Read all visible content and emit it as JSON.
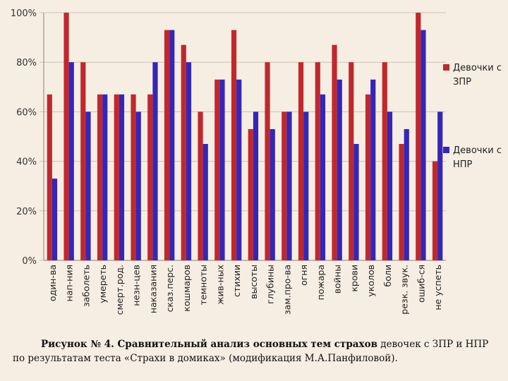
{
  "chart_data": {
    "type": "bar",
    "categories": [
      "один-ва",
      "нап-ния",
      "заболеть",
      "умереть",
      "смерт.род.",
      "незн-цев",
      "наказания",
      "сказ.перс.",
      "кошмаров",
      "темноты",
      "жив-ных",
      "стихии",
      "высоты",
      "глубины",
      "зам.про-ва",
      "огня",
      "пожара",
      "войны",
      "крови",
      "уколов",
      "боли",
      "резк. звук.",
      "ошиб-ся",
      "не успеть"
    ],
    "series": [
      {
        "name": "Девочки с ЗПР",
        "color": "#c0282d",
        "values": [
          67,
          100,
          80,
          67,
          67,
          67,
          67,
          93,
          87,
          60,
          73,
          93,
          53,
          80,
          60,
          80,
          80,
          87,
          80,
          67,
          80,
          47,
          100,
          40
        ]
      },
      {
        "name": "Девочки с НПР",
        "color": "#3526b8",
        "values": [
          33,
          80,
          60,
          67,
          67,
          60,
          80,
          93,
          80,
          47,
          73,
          73,
          60,
          53,
          60,
          60,
          67,
          73,
          47,
          73,
          60,
          53,
          93,
          60
        ]
      }
    ],
    "yticks": [
      "0%",
      "20%",
      "40%",
      "60%",
      "80%",
      "100%"
    ],
    "ylim": [
      0,
      100
    ],
    "grid": true,
    "legend_position": "right",
    "title": "",
    "xlabel": "",
    "ylabel": ""
  },
  "legend": [
    {
      "line1": "Девочки с",
      "line2": "ЗПР"
    },
    {
      "line1": "Девочки с",
      "line2": "НПР"
    }
  ],
  "caption": {
    "bold": "Рисунок № 4. Сравнительный анализ основных тем страхов",
    "rest": " девочек с ЗПР и НПР по результатам теста «Страхи в домиках» (модификация М.А.Панфиловой)."
  }
}
